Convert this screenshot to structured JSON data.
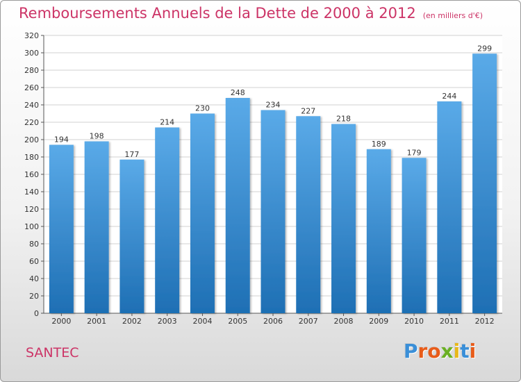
{
  "header": {
    "title": "Remboursements Annuels de la Dette de 2000 à 2012",
    "subtitle": "(en milliers d'€)"
  },
  "footer": {
    "commune": "SANTEC",
    "logo_text": "Proxiti"
  },
  "colors": {
    "title": "#cc3366",
    "bar_top": "#5aaae8",
    "bar_bottom": "#1e6fb4",
    "grid": "#d0d0d0",
    "axis": "#555555",
    "logo": [
      "#3a8fd8",
      "#e85c1a",
      "#e85c1a",
      "#6ab023",
      "#e8b81a",
      "#3a8fd8",
      "#e85c1a"
    ]
  },
  "chart_data": {
    "type": "bar",
    "categories": [
      "2000",
      "2001",
      "2002",
      "2003",
      "2004",
      "2005",
      "2006",
      "2007",
      "2008",
      "2009",
      "2010",
      "2011",
      "2012"
    ],
    "values": [
      194,
      198,
      177,
      214,
      230,
      248,
      234,
      227,
      218,
      189,
      179,
      244,
      299
    ],
    "ylim": [
      0,
      320
    ],
    "yticks": [
      0,
      20,
      40,
      60,
      80,
      100,
      120,
      140,
      160,
      180,
      200,
      220,
      240,
      260,
      280,
      300,
      320
    ],
    "grid": true,
    "data_labels": true
  }
}
